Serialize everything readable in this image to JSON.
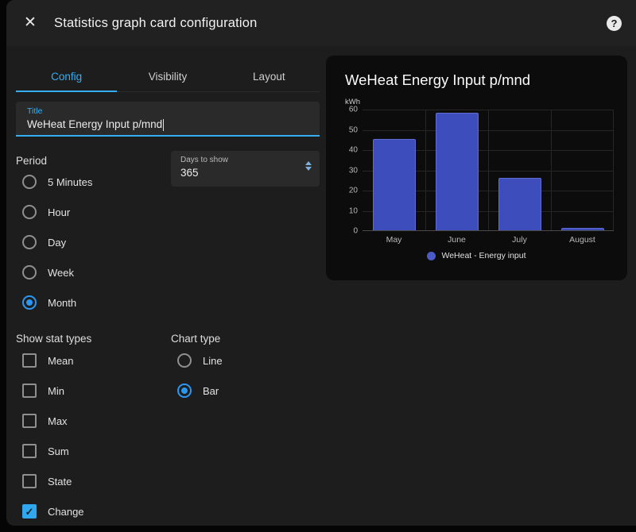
{
  "colors": {
    "accent": "#35aef2",
    "control_selected": "#2b97f0",
    "checkbox_fill": "#2fa8ef"
  },
  "icons": {
    "close": "✕",
    "help": "?",
    "check": "✓"
  },
  "header": {
    "title": "Statistics graph card configuration"
  },
  "tabs": [
    {
      "label": "Config",
      "active": true
    },
    {
      "label": "Visibility",
      "active": false
    },
    {
      "label": "Layout",
      "active": false
    }
  ],
  "form": {
    "title_field": {
      "label": "Title",
      "value": "WeHeat Energy Input p/mnd"
    },
    "period": {
      "label": "Period",
      "options": [
        "5 Minutes",
        "Hour",
        "Day",
        "Week",
        "Month"
      ],
      "selected": "Month"
    },
    "days_to_show": {
      "label": "Days to show",
      "value": "365"
    },
    "stat_types": {
      "label": "Show stat types",
      "options": [
        {
          "label": "Mean",
          "checked": false
        },
        {
          "label": "Min",
          "checked": false
        },
        {
          "label": "Max",
          "checked": false
        },
        {
          "label": "Sum",
          "checked": false
        },
        {
          "label": "State",
          "checked": false
        },
        {
          "label": "Change",
          "checked": true
        }
      ]
    },
    "chart_type": {
      "label": "Chart type",
      "options": [
        "Line",
        "Bar"
      ],
      "selected": "Bar"
    }
  },
  "chart_data": {
    "type": "bar",
    "title": "WeHeat Energy Input p/mnd",
    "unit": "kWh",
    "categories": [
      "May",
      "June",
      "July",
      "August"
    ],
    "values": [
      45,
      58,
      26,
      1
    ],
    "ylim": [
      0,
      60
    ],
    "yticks": [
      60,
      50,
      40,
      30,
      20,
      10,
      0
    ],
    "grid": true,
    "bar_color": "#3e4dbc",
    "bar_border": "#5f6dd0",
    "legend": {
      "label": "WeHeat - Energy input",
      "color": "#4b5ac4",
      "position": "bottom"
    }
  }
}
